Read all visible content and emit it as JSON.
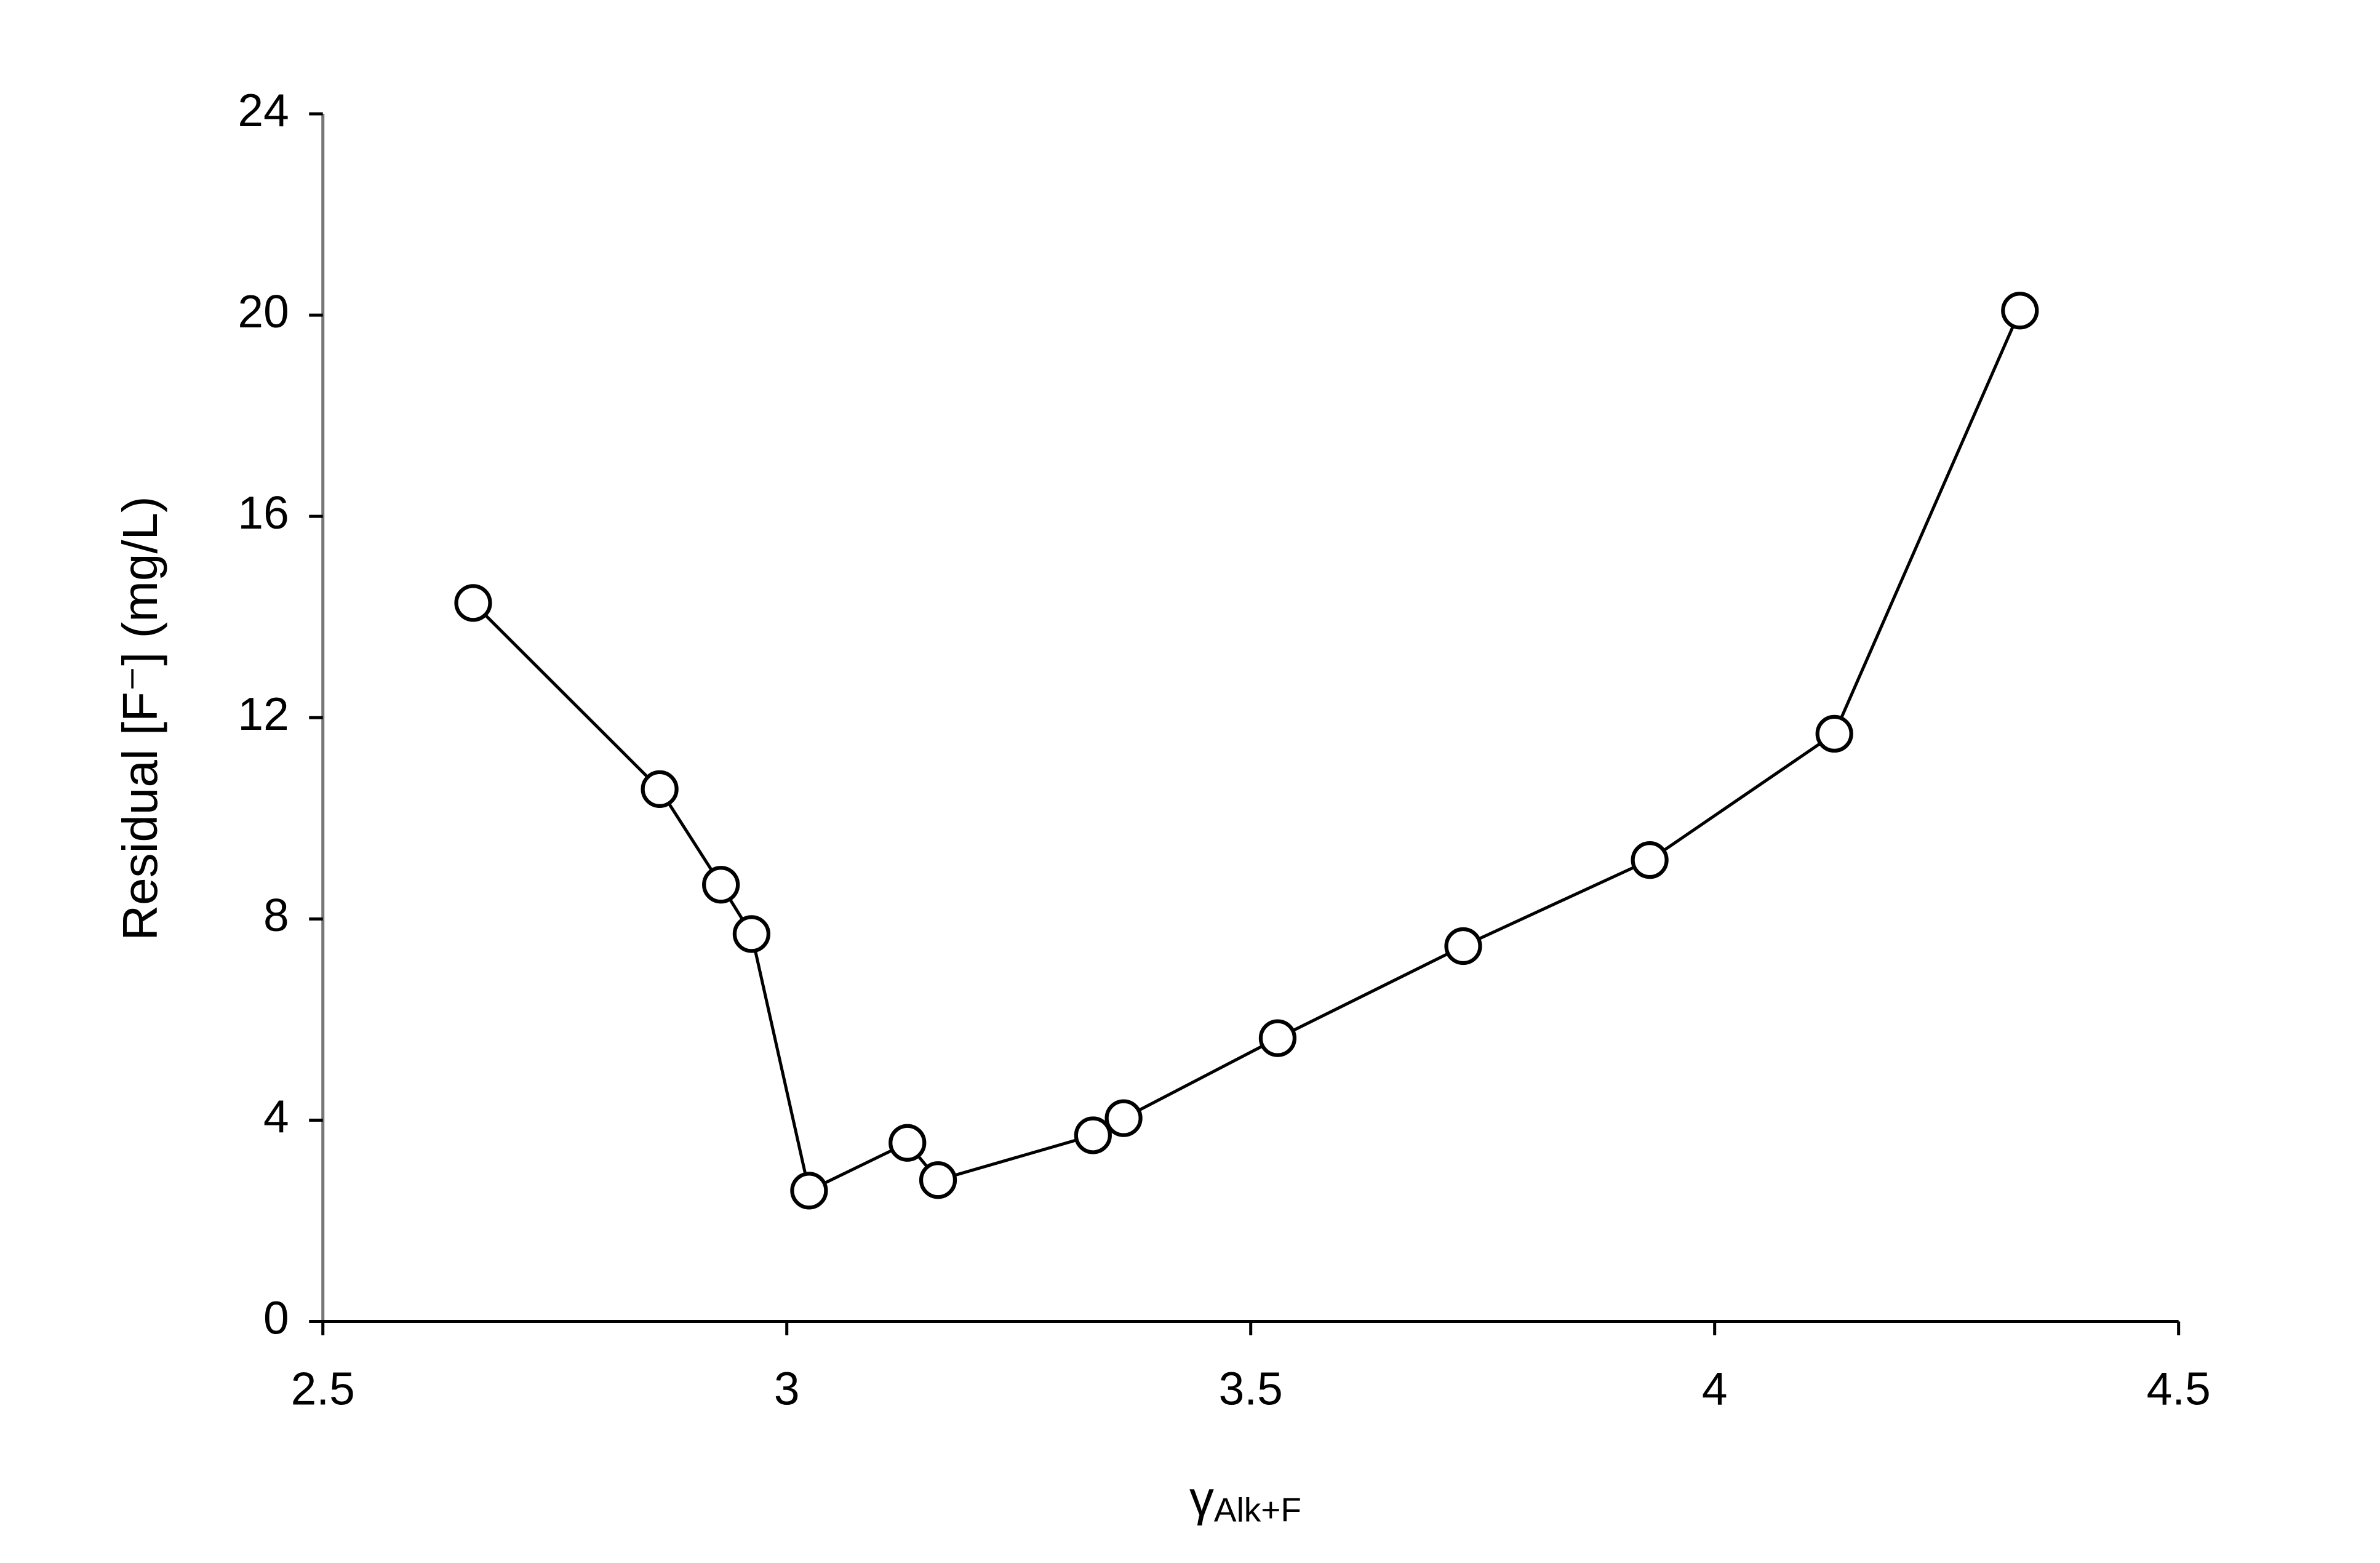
{
  "chart_data": {
    "type": "line",
    "x_label": {
      "symbol": "γ",
      "subscript": "Alk+F"
    },
    "y_label": "Residual [F⁻] (mg/L)",
    "x": [
      2.662,
      2.863,
      2.929,
      2.962,
      3.024,
      3.13,
      3.163,
      3.33,
      3.363,
      3.529,
      3.729,
      3.93,
      4.129,
      4.329
    ],
    "series": [
      {
        "color": "#000000",
        "values": [
          14.28,
          10.58,
          8.68,
          7.7,
          2.6,
          3.55,
          2.81,
          3.7,
          4.04,
          5.63,
          7.46,
          9.17,
          11.68,
          20.09
        ]
      }
    ],
    "marker": "open-circle",
    "xlim": [
      2.5,
      4.5
    ],
    "xticks": [
      2.5,
      3,
      3.5,
      4,
      4.5
    ],
    "ylim": [
      0,
      24
    ],
    "yticks": [
      0,
      4,
      8,
      12,
      16,
      20,
      24
    ],
    "grid": false
  }
}
